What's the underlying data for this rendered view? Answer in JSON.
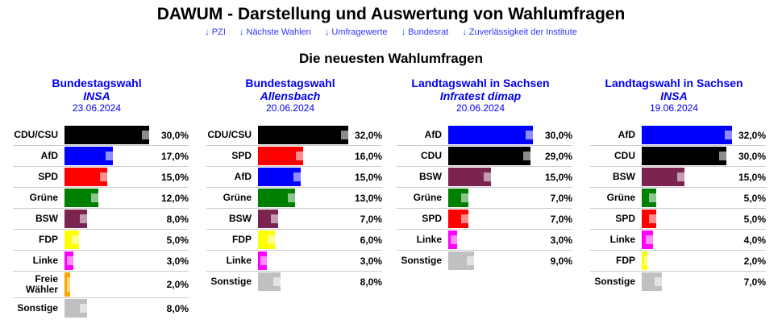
{
  "header": {
    "title": "DAWUM - Darstellung und Auswertung von Wahlumfragen",
    "links": [
      "↓ PZI",
      "↓ Nächste Wahlen",
      "↓ Umfragewerte",
      "↓ Bundesrat",
      "↓ Zuverlässigkeit der Institute"
    ],
    "subtitle": "Die neuesten Wahlumfragen"
  },
  "colors": {
    "CDU/CSU": "#000000",
    "CDU": "#000000",
    "AfD": "#0000ff",
    "SPD": "#ff0000",
    "Grüne": "#008000",
    "BSW": "#7b2450",
    "FDP": "#ffff00",
    "Linke": "#ff00ff",
    "Freie Wähler": "#ffa500",
    "Sonstige": "#c0c0c0"
  },
  "polls": [
    {
      "election": "Bundestagswahl",
      "institute": "INSA",
      "date": "23.06.2024",
      "results": [
        {
          "party": "CDU/CSU",
          "value": 30,
          "label": "30,0%"
        },
        {
          "party": "AfD",
          "value": 17,
          "label": "17,0%"
        },
        {
          "party": "SPD",
          "value": 15,
          "label": "15,0%"
        },
        {
          "party": "Grüne",
          "value": 12,
          "label": "12,0%"
        },
        {
          "party": "BSW",
          "value": 8,
          "label": "8,0%"
        },
        {
          "party": "FDP",
          "value": 5,
          "label": "5,0%"
        },
        {
          "party": "Linke",
          "value": 3,
          "label": "3,0%"
        },
        {
          "party": "Freie Wähler",
          "value": 2,
          "label": "2,0%"
        },
        {
          "party": "Sonstige",
          "value": 8,
          "label": "8,0%"
        }
      ]
    },
    {
      "election": "Bundestagswahl",
      "institute": "Allensbach",
      "date": "20.06.2024",
      "results": [
        {
          "party": "CDU/CSU",
          "value": 32,
          "label": "32,0%"
        },
        {
          "party": "SPD",
          "value": 16,
          "label": "16,0%"
        },
        {
          "party": "AfD",
          "value": 15,
          "label": "15,0%"
        },
        {
          "party": "Grüne",
          "value": 13,
          "label": "13,0%"
        },
        {
          "party": "BSW",
          "value": 7,
          "label": "7,0%"
        },
        {
          "party": "FDP",
          "value": 6,
          "label": "6,0%"
        },
        {
          "party": "Linke",
          "value": 3,
          "label": "3,0%"
        },
        {
          "party": "Sonstige",
          "value": 8,
          "label": "8,0%"
        }
      ]
    },
    {
      "election": "Landtagswahl in Sachsen",
      "institute": "Infratest dimap",
      "date": "20.06.2024",
      "results": [
        {
          "party": "AfD",
          "value": 30,
          "label": "30,0%"
        },
        {
          "party": "CDU",
          "value": 29,
          "label": "29,0%"
        },
        {
          "party": "BSW",
          "value": 15,
          "label": "15,0%"
        },
        {
          "party": "Grüne",
          "value": 7,
          "label": "7,0%"
        },
        {
          "party": "SPD",
          "value": 7,
          "label": "7,0%"
        },
        {
          "party": "Linke",
          "value": 3,
          "label": "3,0%"
        },
        {
          "party": "Sonstige",
          "value": 9,
          "label": "9,0%"
        }
      ]
    },
    {
      "election": "Landtagswahl in Sachsen",
      "institute": "INSA",
      "date": "19.06.2024",
      "results": [
        {
          "party": "AfD",
          "value": 32,
          "label": "32,0%"
        },
        {
          "party": "CDU",
          "value": 30,
          "label": "30,0%"
        },
        {
          "party": "BSW",
          "value": 15,
          "label": "15,0%"
        },
        {
          "party": "Grüne",
          "value": 5,
          "label": "5,0%"
        },
        {
          "party": "SPD",
          "value": 5,
          "label": "5,0%"
        },
        {
          "party": "Linke",
          "value": 4,
          "label": "4,0%"
        },
        {
          "party": "FDP",
          "value": 2,
          "label": "2,0%"
        },
        {
          "party": "Sonstige",
          "value": 7,
          "label": "7,0%"
        }
      ]
    }
  ]
}
